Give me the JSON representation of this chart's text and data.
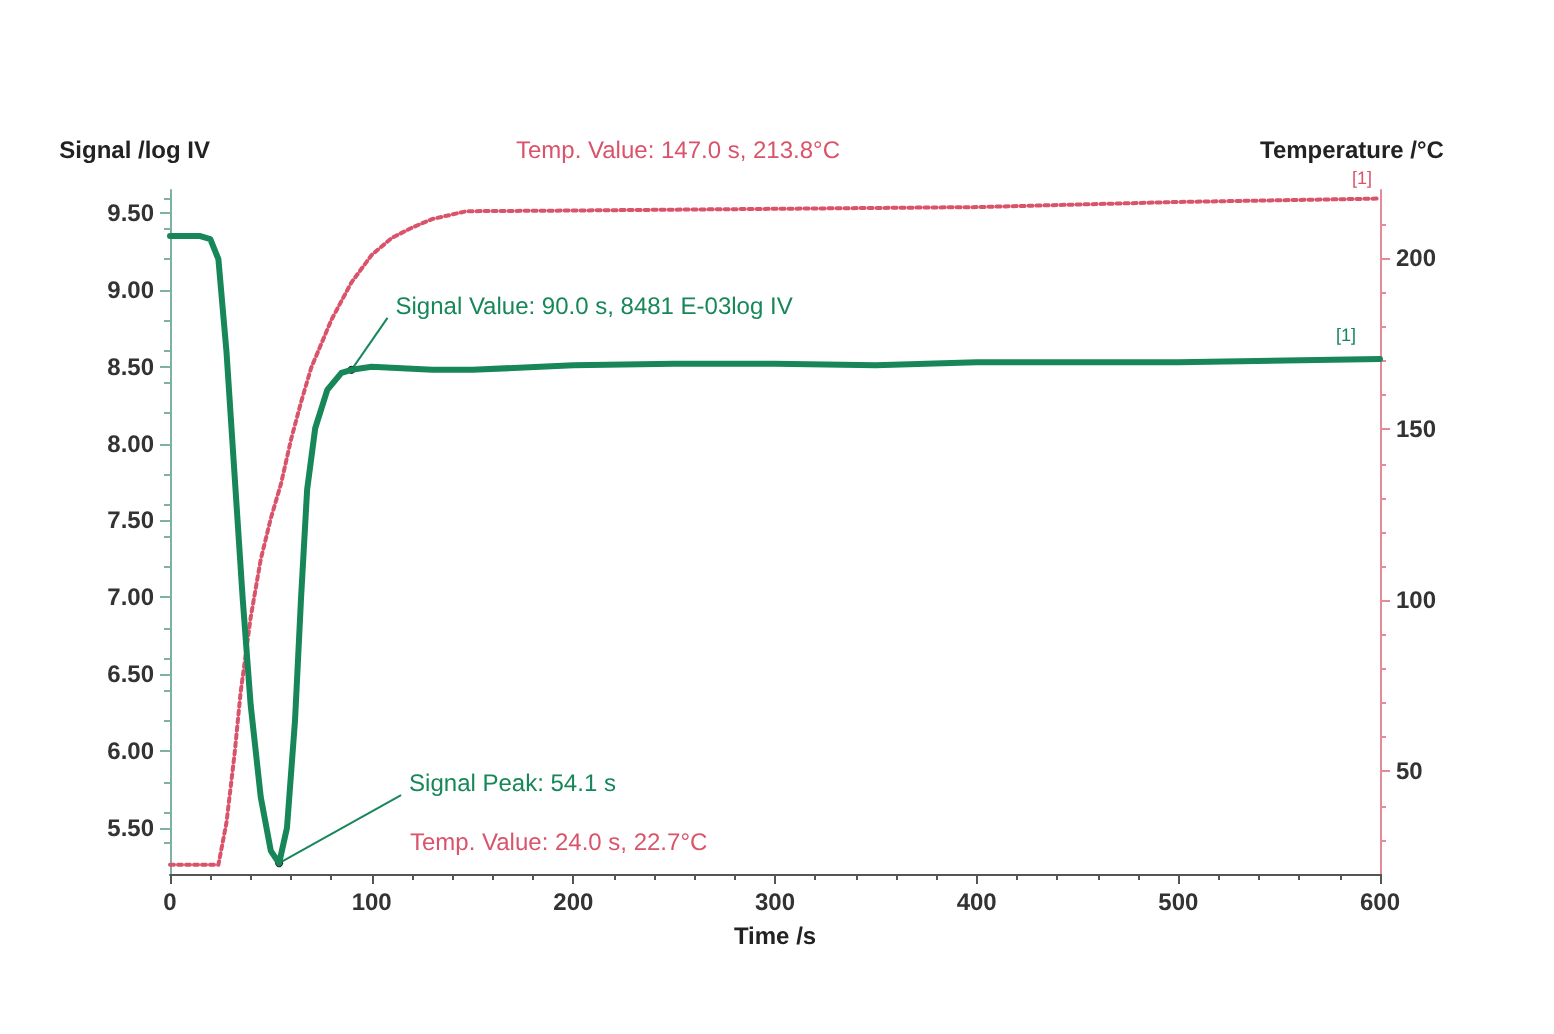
{
  "chart_data": {
    "type": "line",
    "xlabel": "Time /s",
    "ylabel": "Signal /log IV",
    "y2label": "Temperature /°C",
    "series": [
      {
        "color": "#17875a",
        "line_style": "solid",
        "x": [
          0,
          15,
          20,
          24,
          28,
          32,
          36,
          40,
          45,
          50,
          54.1,
          58,
          62,
          65,
          68,
          72,
          78,
          85,
          90,
          100,
          130,
          150,
          200,
          250,
          300,
          350,
          400,
          500,
          600
        ],
        "values": [
          9.35,
          9.35,
          9.33,
          9.2,
          8.6,
          7.8,
          7.0,
          6.3,
          5.7,
          5.35,
          5.27,
          5.5,
          6.2,
          7.0,
          7.7,
          8.1,
          8.35,
          8.46,
          8.48,
          8.5,
          8.48,
          8.48,
          8.51,
          8.52,
          8.52,
          8.51,
          8.53,
          8.53,
          8.55
        ]
      },
      {
        "color": "#d9546a",
        "line_style": "dotted",
        "axis": "y2",
        "x": [
          0,
          24,
          28,
          32,
          35,
          40,
          45,
          50,
          55,
          60,
          65,
          70,
          80,
          90,
          100,
          110,
          120,
          130,
          147,
          200,
          300,
          400,
          500,
          600
        ],
        "values": [
          22.7,
          22.7,
          35,
          55,
          73,
          95,
          112,
          124,
          134,
          147,
          158,
          168,
          182,
          193,
          201,
          206,
          209,
          211.5,
          213.8,
          214,
          214.5,
          215,
          216.5,
          217.5
        ]
      }
    ],
    "xlim": [
      0,
      600
    ],
    "xticks": [
      0,
      100,
      200,
      300,
      400,
      500,
      600
    ],
    "ylim": [
      5.2,
      9.65
    ],
    "yticks": [
      {
        "value": 5.5,
        "label": "5.50"
      },
      {
        "value": 6,
        "label": "6.00"
      },
      {
        "value": 6.5,
        "label": "6.50"
      },
      {
        "value": 7,
        "label": "7.00"
      },
      {
        "value": 7.5,
        "label": "7.50"
      },
      {
        "value": 8,
        "label": "8.00"
      },
      {
        "value": 8.5,
        "label": "8.50"
      },
      {
        "value": 9,
        "label": "9.00"
      },
      {
        "value": 9.5,
        "label": "9.50"
      }
    ],
    "y2lim": [
      20,
      220
    ],
    "y2ticks": [
      50,
      100,
      150,
      200
    ],
    "annotations": [
      "Temp. Value: 147.0 s, 213.8°C",
      {
        "text": "Signal Value: 90.0 s, 8481 E-03log IV",
        "x": 90,
        "y": 8.48
      },
      {
        "text": "Signal Peak: 54.1 s",
        "x": 54.1,
        "y": 5.27
      },
      "Temp. Value: 24.0 s, 22.7°C",
      "[1]",
      {
        "text": "[1]",
        "x": 600,
        "y": 8.55
      }
    ],
    "grid": false,
    "marker": "none"
  }
}
